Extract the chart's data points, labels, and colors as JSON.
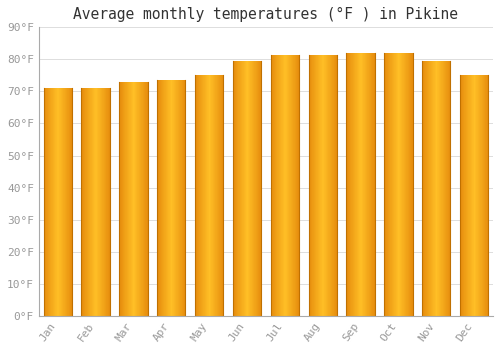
{
  "title": "Average monthly temperatures (°F ) in Pikine",
  "months": [
    "Jan",
    "Feb",
    "Mar",
    "Apr",
    "May",
    "Jun",
    "Jul",
    "Aug",
    "Sep",
    "Oct",
    "Nov",
    "Dec"
  ],
  "values": [
    71,
    71,
    73,
    73.5,
    75,
    79.5,
    81.5,
    81.5,
    82,
    82,
    79.5,
    75
  ],
  "bar_color_center": "#FFB833",
  "bar_color_edge": "#E08000",
  "background_color": "#FFFFFF",
  "grid_color": "#DDDDDD",
  "ylim": [
    0,
    90
  ],
  "yticks": [
    0,
    10,
    20,
    30,
    40,
    50,
    60,
    70,
    80,
    90
  ],
  "ytick_labels": [
    "0°F",
    "10°F",
    "20°F",
    "30°F",
    "40°F",
    "50°F",
    "60°F",
    "70°F",
    "80°F",
    "90°F"
  ],
  "title_fontsize": 10.5,
  "tick_fontsize": 8,
  "tick_color": "#999999"
}
